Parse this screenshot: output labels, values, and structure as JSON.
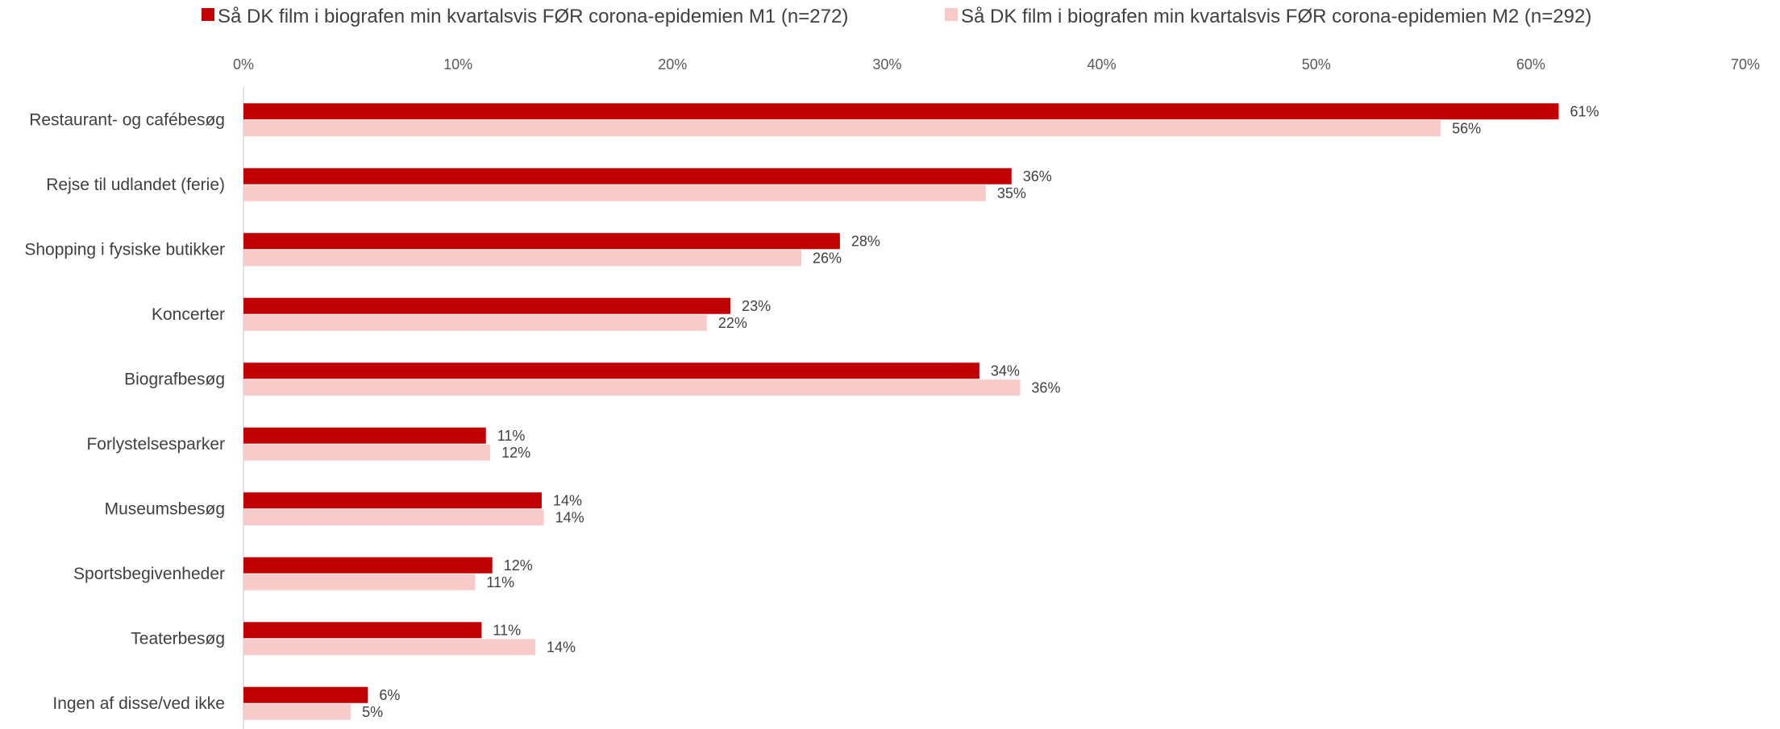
{
  "chart_data": {
    "type": "bar",
    "orientation": "horizontal",
    "title": "",
    "xlabel": "",
    "ylabel": "",
    "xlim": [
      0,
      70
    ],
    "x_ticks": [
      0,
      10,
      20,
      30,
      40,
      50,
      60,
      70
    ],
    "x_tick_labels": [
      "0%",
      "10%",
      "20%",
      "30%",
      "40%",
      "50%",
      "60%",
      "70%"
    ],
    "grid": false,
    "legend_position": "top",
    "categories": [
      "Restaurant- og cafébesøg",
      "Rejse til udlandet (ferie)",
      "Shopping i fysiske butikker",
      "Koncerter",
      "Biografbesøg",
      "Forlystelsesparker",
      "Museumsbesøg",
      "Sportsbegivenheder",
      "Teaterbesøg",
      "Ingen af disse/ved ikke"
    ],
    "series": [
      {
        "name": "Så DK film i biografen min kvartalsvis FØR corona-epidemien M1 (n=272)",
        "color": "#C00000",
        "values": [
          61.3,
          35.8,
          27.8,
          22.7,
          34.3,
          11.3,
          13.9,
          11.6,
          11.1,
          5.8
        ],
        "labels": [
          "61%",
          "36%",
          "28%",
          "23%",
          "34%",
          "11%",
          "14%",
          "12%",
          "11%",
          "6%"
        ]
      },
      {
        "name": "Så DK film i biografen min kvartalsvis FØR corona-epidemien M2 (n=292)",
        "color": "#F8CBCB",
        "values": [
          55.8,
          34.6,
          26.0,
          21.6,
          36.2,
          11.5,
          14.0,
          10.8,
          13.6,
          5.0
        ],
        "labels": [
          "56%",
          "35%",
          "26%",
          "22%",
          "36%",
          "12%",
          "14%",
          "11%",
          "14%",
          "5%"
        ]
      }
    ]
  }
}
